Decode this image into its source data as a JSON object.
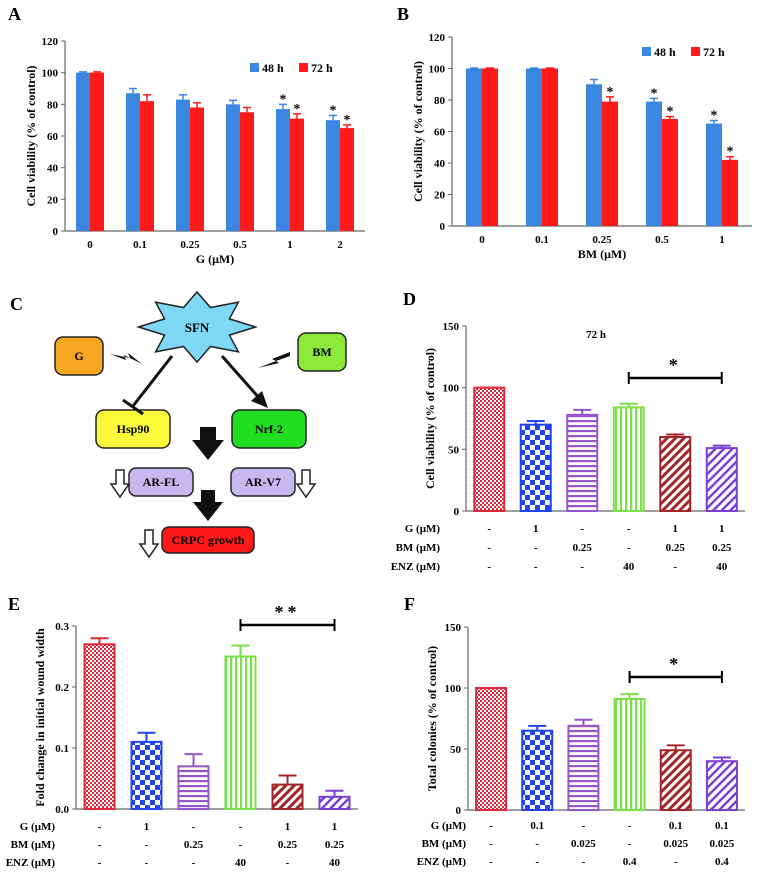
{
  "colors": {
    "blue": "#3a86e0",
    "red": "#ff1a1a",
    "axis": "#666666",
    "crimson": "#e0283c",
    "dark_red": "#a3262a",
    "royal_blue": "#2244ee",
    "purple": "#9955cc",
    "green": "#7be04a",
    "violet": "#7d3fd1",
    "orange": "#f5a623",
    "lime": "#8de83c",
    "yellow": "#fafa3a",
    "bright_green": "#22dd22",
    "lavender": "#c8b8f0",
    "sky": "#7fd8f5"
  },
  "chart_data": [
    {
      "panel": "A",
      "type": "bar",
      "xlabel": "G (μM)",
      "ylabel": "Cell viability (% of control)",
      "ylim": [
        0,
        120
      ],
      "yticks": [
        0,
        20,
        40,
        60,
        80,
        100,
        120
      ],
      "categories": [
        "0",
        "0.1",
        "0.25",
        "0.5",
        "1",
        "2"
      ],
      "series": [
        {
          "name": "48 h",
          "color": "#3a86e0",
          "values": [
            100,
            87,
            83,
            80,
            77,
            70
          ],
          "errors": [
            0.5,
            3,
            3,
            2.5,
            3,
            3
          ],
          "sig": [
            false,
            false,
            false,
            false,
            true,
            true
          ]
        },
        {
          "name": "72 h",
          "color": "#ff1a1a",
          "values": [
            100,
            82,
            78,
            75,
            71,
            65
          ],
          "errors": [
            0.5,
            4,
            3,
            3,
            3,
            2
          ],
          "sig": [
            false,
            false,
            false,
            false,
            true,
            true
          ]
        }
      ],
      "legend_position": "top-right",
      "star": "*"
    },
    {
      "panel": "B",
      "type": "bar",
      "xlabel": "BM (μM)",
      "ylabel": "Cell viability (% of control)",
      "ylim": [
        0,
        120
      ],
      "yticks": [
        0,
        20,
        40,
        60,
        80,
        100,
        120
      ],
      "categories": [
        "0",
        "0.1",
        "0.25",
        "0.5",
        "1"
      ],
      "series": [
        {
          "name": "48 h",
          "color": "#3a86e0",
          "values": [
            100,
            100,
            90,
            79,
            65
          ],
          "errors": [
            0.3,
            0.3,
            3,
            2,
            2
          ],
          "sig": [
            false,
            false,
            false,
            true,
            true
          ]
        },
        {
          "name": "72 h",
          "color": "#ff1a1a",
          "values": [
            100,
            100,
            79,
            68,
            42
          ],
          "errors": [
            0.3,
            0.3,
            3,
            1.5,
            2
          ],
          "sig": [
            false,
            false,
            true,
            true,
            true
          ]
        }
      ],
      "legend_position": "top-right",
      "star": "*"
    },
    {
      "panel": "D",
      "type": "bar",
      "title": "72 h",
      "ylabel": "Cell viability (% of control)",
      "ylim": [
        0,
        150
      ],
      "yticks": [
        0,
        50,
        100,
        150
      ],
      "values": [
        100,
        70,
        78,
        84,
        60,
        51
      ],
      "errors": [
        0,
        3,
        4,
        3,
        2,
        2
      ],
      "significance": {
        "from": 3,
        "to": 5,
        "label": "*"
      },
      "conditions": [
        {
          "label": "G (μM)",
          "values": [
            "-",
            "1",
            "-",
            "-",
            "1",
            "1"
          ]
        },
        {
          "label": "BM (μM)",
          "values": [
            "-",
            "-",
            "0.25",
            "-",
            "0.25",
            "0.25"
          ]
        },
        {
          "label": "ENZ (μM)",
          "values": [
            "-",
            "-",
            "-",
            "40",
            "-",
            "40"
          ]
        }
      ]
    },
    {
      "panel": "E",
      "type": "bar",
      "ylabel": "Fold change in initial wound width",
      "ylim": [
        0,
        0.3
      ],
      "yticks": [
        "0.0",
        "0.1",
        "0.2",
        "0.3"
      ],
      "values": [
        0.27,
        0.11,
        0.07,
        0.25,
        0.04,
        0.02
      ],
      "errors": [
        0.01,
        0.015,
        0.02,
        0.018,
        0.015,
        0.01
      ],
      "significance": {
        "from": 3,
        "to": 5,
        "label": "**"
      },
      "conditions": [
        {
          "label": "G (μM)",
          "values": [
            "-",
            "1",
            "-",
            "-",
            "1",
            "1"
          ]
        },
        {
          "label": "BM (μM)",
          "values": [
            "-",
            "-",
            "0.25",
            "-",
            "0.25",
            "0.25"
          ]
        },
        {
          "label": "ENZ (μM)",
          "values": [
            "-",
            "-",
            "-",
            "40",
            "-",
            "40"
          ]
        }
      ]
    },
    {
      "panel": "F",
      "type": "bar",
      "ylabel": "Total colonies (% of control)",
      "ylim": [
        0,
        150
      ],
      "yticks": [
        0,
        50,
        100,
        150
      ],
      "values": [
        100,
        65,
        69,
        91,
        49,
        40
      ],
      "errors": [
        0,
        4,
        5,
        4,
        4,
        3
      ],
      "significance": {
        "from": 3,
        "to": 5,
        "label": "*"
      },
      "conditions": [
        {
          "label": "G (μM)",
          "values": [
            "-",
            "0.1",
            "-",
            "-",
            "0.1",
            "0.1"
          ]
        },
        {
          "label": "BM (μM)",
          "values": [
            "-",
            "-",
            "0.025",
            "-",
            "0.025",
            "0.025"
          ]
        },
        {
          "label": "ENZ (μM)",
          "values": [
            "-",
            "-",
            "-",
            "0.4",
            "-",
            "0.4"
          ]
        }
      ]
    }
  ],
  "diagram": {
    "panel": "C",
    "nodes": {
      "sfn": "SFN",
      "g": "G",
      "bm": "BM",
      "hsp90": "Hsp90",
      "nrf2": "Nrf-2",
      "arfl": "AR-FL",
      "arv7": "AR-V7",
      "crpc": "CRPC growth"
    }
  }
}
